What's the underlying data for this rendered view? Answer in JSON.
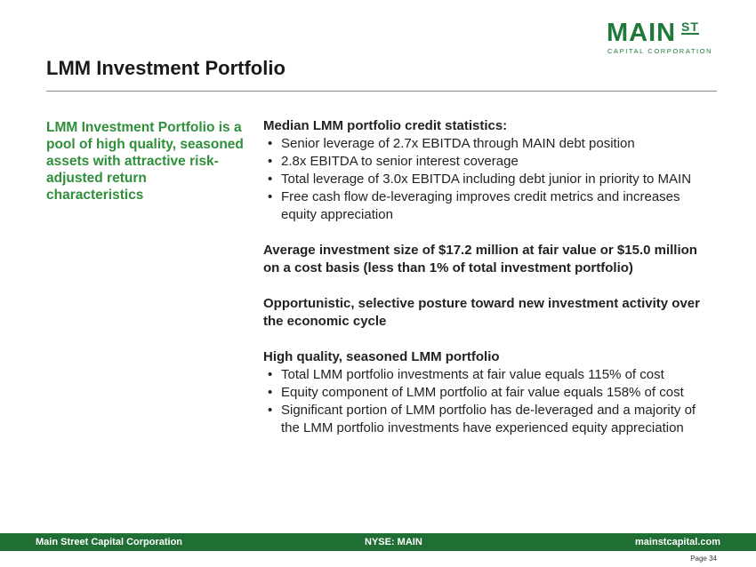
{
  "logo": {
    "main": "MAIN",
    "st": "ST",
    "sub": "CAPITAL CORPORATION"
  },
  "title": "LMM Investment Portfolio",
  "sidebar": {
    "text": "LMM Investment Portfolio is a pool of high quality, seasoned assets with attractive risk-adjusted return characteristics"
  },
  "sections": [
    {
      "heading": "Median LMM portfolio credit statistics:",
      "bullets": [
        "Senior leverage of 2.7x EBITDA through MAIN debt position",
        "2.8x EBITDA to senior interest coverage",
        "Total leverage of 3.0x EBITDA including debt junior in priority to MAIN",
        "Free cash flow de-leveraging improves credit metrics and increases equity appreciation"
      ]
    },
    {
      "heading": "Average investment size of $17.2 million at fair value or $15.0 million on a cost basis (less than 1% of total investment portfolio)",
      "bullets": []
    },
    {
      "heading": "Opportunistic, selective posture toward new investment activity over the economic cycle",
      "bullets": []
    },
    {
      "heading": "High quality, seasoned LMM portfolio",
      "bullets": [
        "Total LMM portfolio investments at fair value equals 115% of cost",
        "Equity component of LMM portfolio at fair value equals 158% of cost",
        "Significant portion of LMM portfolio has de-leveraged and a majority of the LMM portfolio investments have experienced equity appreciation"
      ]
    }
  ],
  "footer": {
    "left": "Main Street Capital Corporation",
    "middle": "NYSE: MAIN",
    "right": "mainstcapital.com"
  },
  "page": "Page  34",
  "colors": {
    "brand_green": "#1f7a3a",
    "footer_green": "#1f6e33",
    "sidebar_green": "#2f8f3a"
  }
}
